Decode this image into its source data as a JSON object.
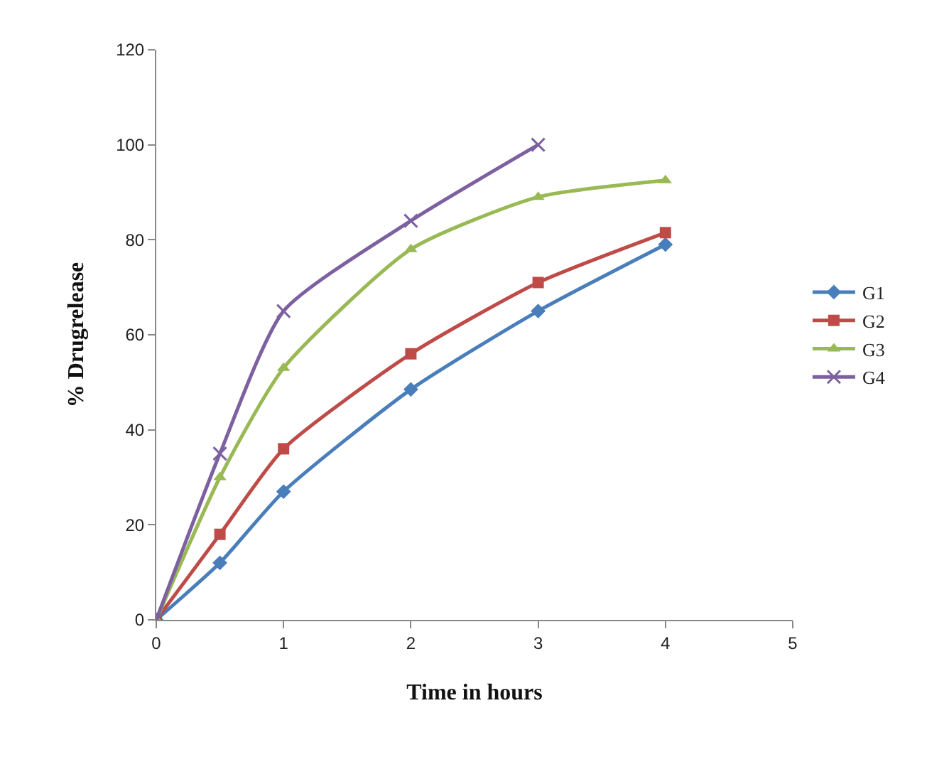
{
  "chart_data": {
    "type": "line",
    "xlabel": "Time in hours",
    "ylabel": "% Drugrelease",
    "x": [
      0,
      0.5,
      1,
      2,
      3,
      4
    ],
    "xlim": [
      0,
      5
    ],
    "xticks": [
      0,
      1,
      2,
      3,
      4,
      5
    ],
    "ylim": [
      0,
      120
    ],
    "yticks": [
      0,
      20,
      40,
      60,
      80,
      100,
      120
    ],
    "grid": false,
    "legend": "right",
    "series": [
      {
        "name": "G1",
        "color": "#4a7ebb",
        "marker": "diamond",
        "values": [
          0,
          12,
          27,
          48.5,
          65,
          79
        ]
      },
      {
        "name": "G2",
        "color": "#be4b48",
        "marker": "square",
        "values": [
          0,
          18,
          36,
          56,
          71,
          81.5
        ]
      },
      {
        "name": "G3",
        "color": "#98b954",
        "marker": "triangle",
        "values": [
          0,
          30,
          53,
          78,
          89,
          92.5
        ]
      },
      {
        "name": "G4",
        "color": "#7d60a0",
        "marker": "cross",
        "values": [
          0,
          35,
          65,
          84,
          100,
          null
        ]
      }
    ]
  }
}
